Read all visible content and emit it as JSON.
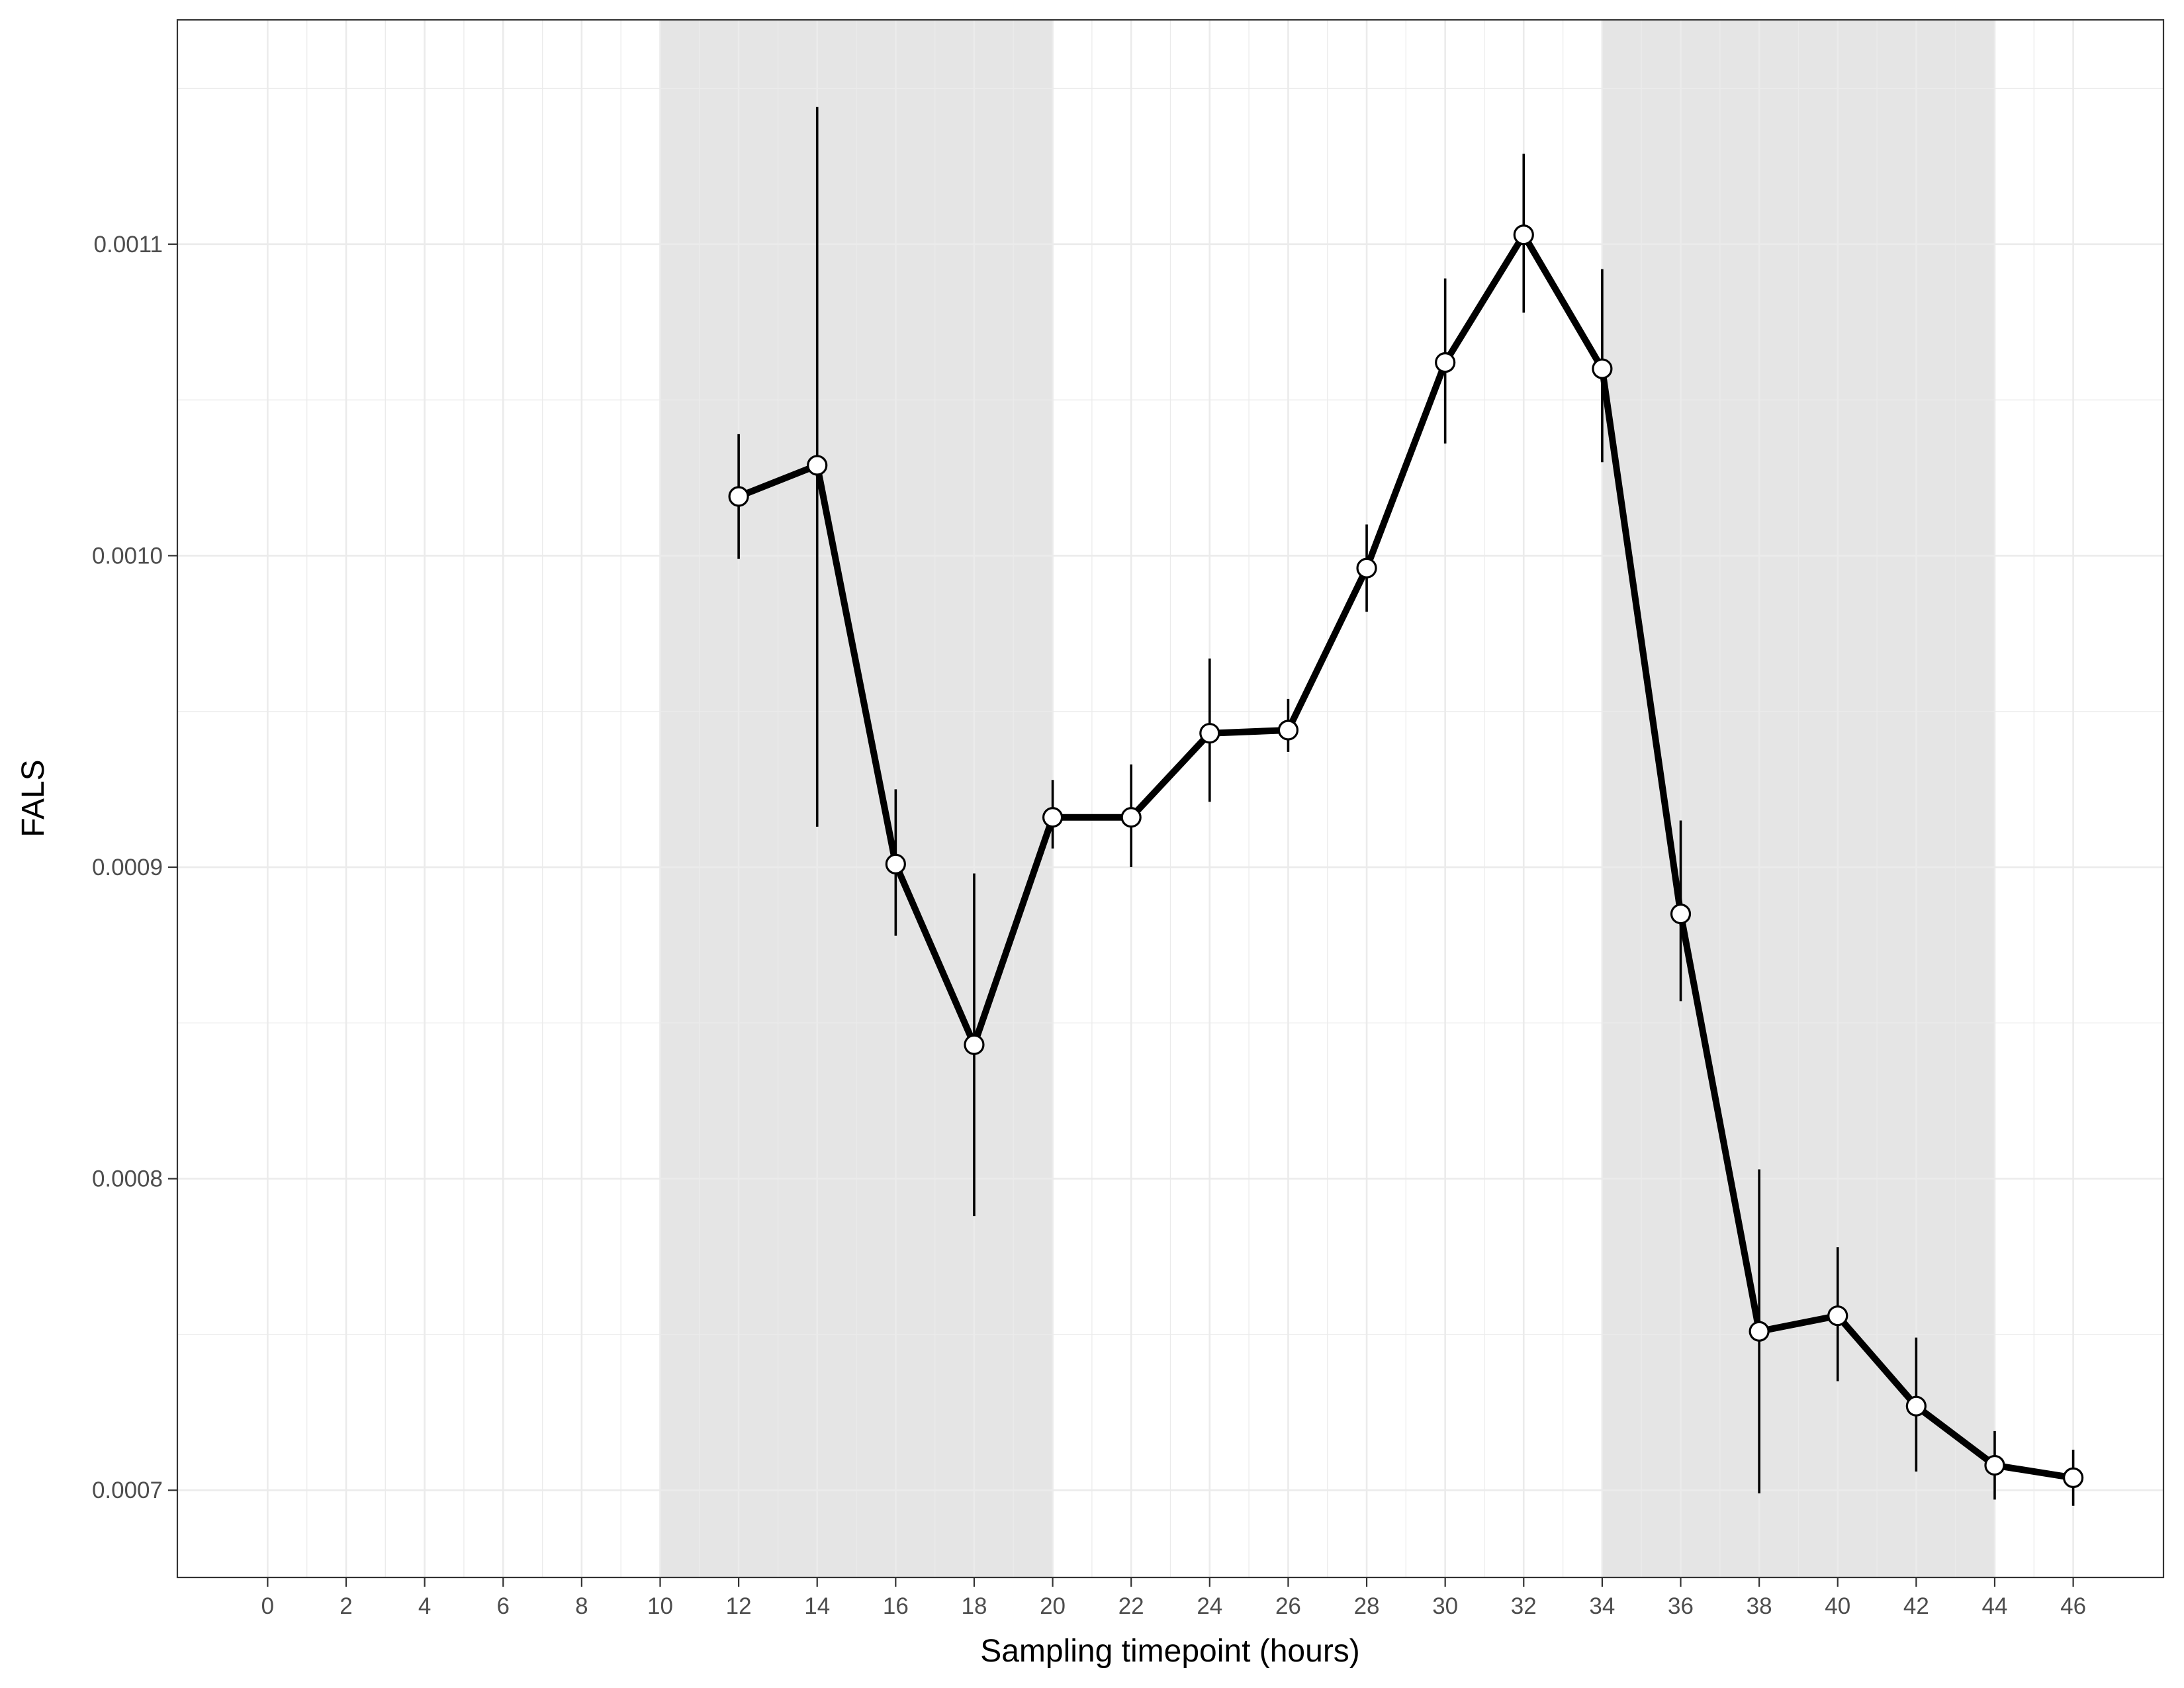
{
  "chart_data": {
    "type": "line",
    "xlabel": "Sampling timepoint (hours)",
    "ylabel": "FALS",
    "xlim": [
      -2.3,
      48.3
    ],
    "ylim": [
      0.000672,
      0.001172
    ],
    "xticks": [
      0,
      2,
      4,
      6,
      8,
      10,
      12,
      14,
      16,
      18,
      20,
      22,
      24,
      26,
      28,
      30,
      32,
      34,
      36,
      38,
      40,
      42,
      44,
      46
    ],
    "xtick_labels": [
      "0",
      "2",
      "4",
      "6",
      "8",
      "10",
      "12",
      "14",
      "16",
      "18",
      "20",
      "22",
      "24",
      "26",
      "28",
      "30",
      "32",
      "34",
      "36",
      "38",
      "40",
      "42",
      "44",
      "46"
    ],
    "yticks": [
      0.0007,
      0.0008,
      0.0009,
      0.001,
      0.0011
    ],
    "ytick_labels": [
      "0.0007",
      "0.0008",
      "0.0009",
      "0.0010",
      "0.0011"
    ],
    "grid": true,
    "shaded_regions": [
      {
        "x_start": 10,
        "x_end": 20,
        "color": "#e5e5e5"
      },
      {
        "x_start": 34,
        "x_end": 44,
        "color": "#e5e5e5"
      }
    ],
    "series": [
      {
        "color": "#000000",
        "marker_fill": "#ffffff",
        "x": [
          12,
          14,
          16,
          18,
          20,
          22,
          24,
          26,
          28,
          30,
          32,
          34,
          36,
          38,
          40,
          42,
          44,
          46
        ],
        "y": [
          0.001019,
          0.001029,
          0.000901,
          0.000843,
          0.000916,
          0.000916,
          0.000943,
          0.000944,
          0.000996,
          0.001062,
          0.001103,
          0.00106,
          0.000885,
          0.000751,
          0.000756,
          0.000727,
          0.000708,
          0.000704
        ],
        "y_low": [
          0.000999,
          0.000913,
          0.000878,
          0.000788,
          0.000906,
          0.0009,
          0.000921,
          0.000937,
          0.000982,
          0.001036,
          0.001078,
          0.00103,
          0.000857,
          0.000699,
          0.000735,
          0.000706,
          0.000697,
          0.000695
        ],
        "y_high": [
          0.001039,
          0.001144,
          0.000925,
          0.000898,
          0.000928,
          0.000933,
          0.000967,
          0.000954,
          0.00101,
          0.001089,
          0.001129,
          0.001092,
          0.000915,
          0.000803,
          0.000778,
          0.000749,
          0.000719,
          0.000713
        ]
      }
    ]
  }
}
